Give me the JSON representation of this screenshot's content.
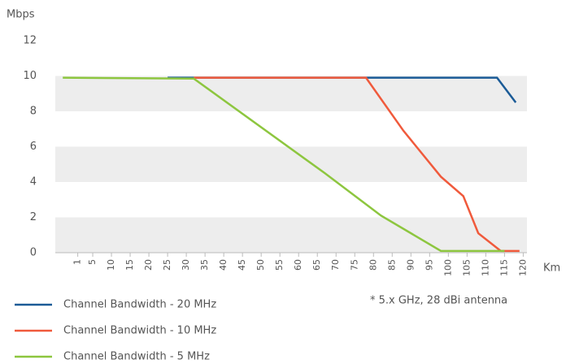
{
  "chart_data": {
    "type": "line",
    "y_label": "Mbps",
    "x_label": "Km",
    "annotation": "* 5.x GHz, 28 dBi antenna",
    "xlim": [
      -5,
      121
    ],
    "xticks": [
      1,
      5,
      10,
      15,
      20,
      25,
      30,
      35,
      40,
      45,
      50,
      55,
      60,
      65,
      70,
      75,
      80,
      85,
      90,
      95,
      100,
      105,
      110,
      115,
      120
    ],
    "ylim": [
      0,
      12
    ],
    "yticks": [
      0,
      2,
      4,
      6,
      8,
      10,
      12
    ],
    "series": [
      {
        "name": "Channel Bandwidth - 20 MHz",
        "color": "#1b5b97",
        "x": [
          25,
          113,
          118
        ],
        "values": [
          9.9,
          9.9,
          8.5
        ]
      },
      {
        "name": "Channel Bandwidth - 10 MHz",
        "color": "#f05a3c",
        "x": [
          32,
          78,
          88,
          98,
          104,
          108,
          114,
          119
        ],
        "values": [
          9.9,
          9.9,
          6.9,
          4.3,
          3.2,
          1.1,
          0.1,
          0.1
        ]
      },
      {
        "name": "Channel Bandwidth - 5 MHz",
        "color": "#8dc63f",
        "x": [
          -3,
          32,
          67,
          82,
          98,
          115
        ],
        "values": [
          9.9,
          9.85,
          4.5,
          2.1,
          0.1,
          0.1
        ]
      }
    ]
  }
}
